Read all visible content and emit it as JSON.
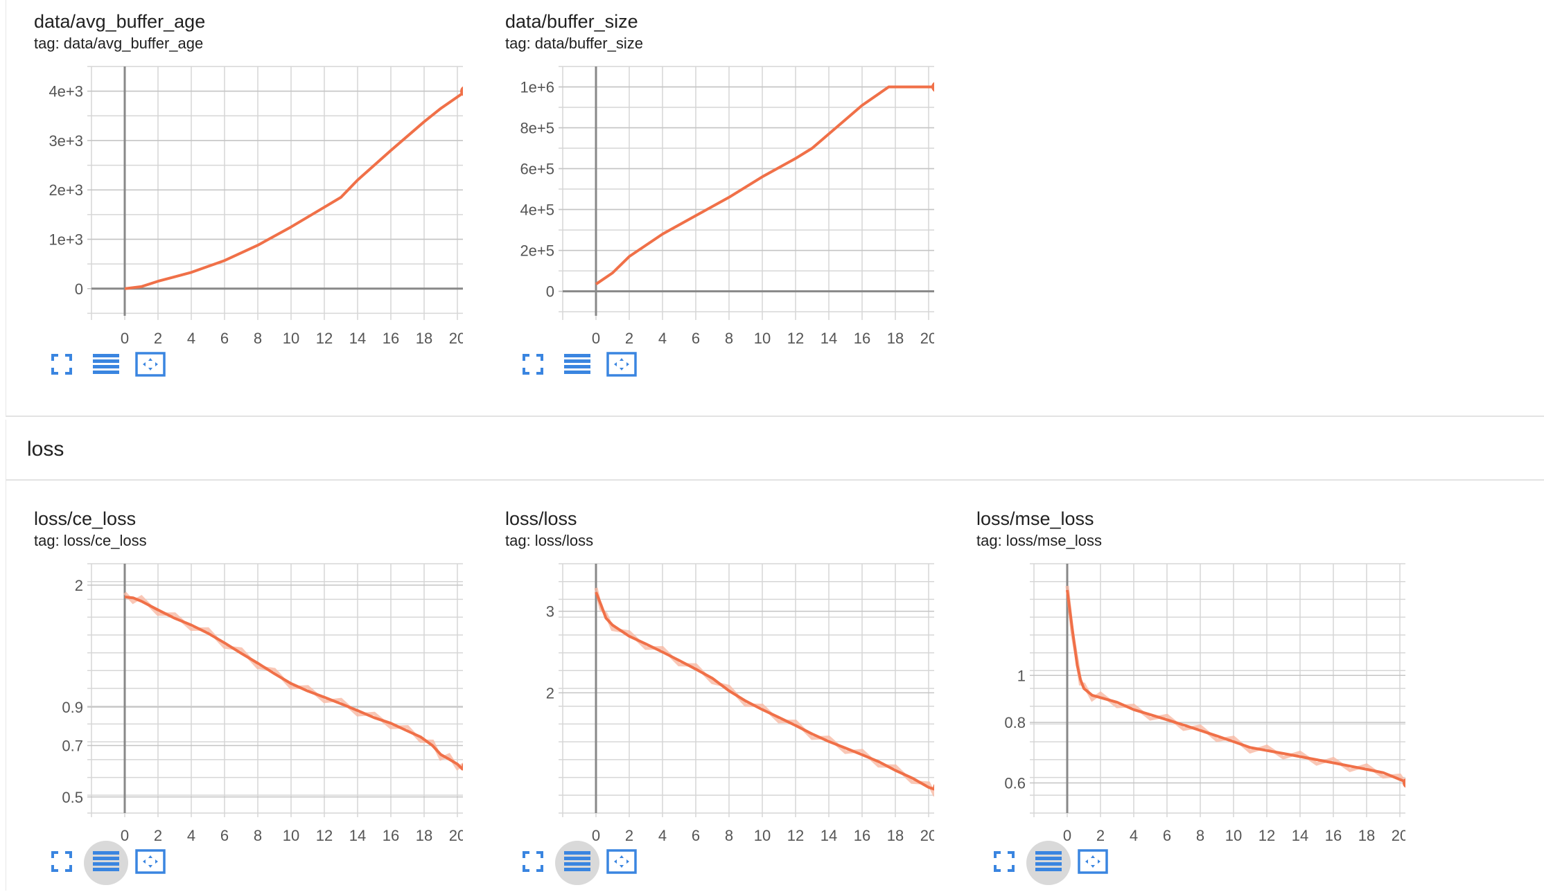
{
  "group_title": "loss",
  "colors": {
    "line": "#f07048",
    "line_faint": "#f7b9a4",
    "grid": "#d6d6d6",
    "axis": "#888888",
    "icon": "#3a85e0"
  },
  "icons": [
    "fullscreen-icon",
    "toggle-log-scale-icon",
    "fit-domain-icon"
  ],
  "cards": [
    {
      "title": "data/avg_buffer_age",
      "tag": "tag: data/avg_buffer_age"
    },
    {
      "title": "data/buffer_size",
      "tag": "tag: data/buffer_size"
    },
    {
      "title": "loss/ce_loss",
      "tag": "tag: loss/ce_loss"
    },
    {
      "title": "loss/loss",
      "tag": "tag: loss/loss"
    },
    {
      "title": "loss/mse_loss",
      "tag": "tag: loss/mse_loss"
    }
  ],
  "chart_data": [
    {
      "type": "line",
      "title": "data/avg_buffer_age",
      "x_ticks": [
        "0",
        "2",
        "4",
        "6",
        "8",
        "10",
        "12",
        "14",
        "16",
        "18",
        "20"
      ],
      "y_ticks": [
        "0",
        "1e+3",
        "2e+3",
        "3e+3",
        "4e+3"
      ],
      "y_tick_values": [
        0,
        1000,
        2000,
        3000,
        4000
      ],
      "xlim": [
        -2,
        22
      ],
      "ylim": [
        -550,
        4500
      ],
      "scale": "linear",
      "series": [
        {
          "x": [
            0,
            1,
            2,
            4,
            6,
            8,
            10,
            12,
            13,
            14,
            16,
            18,
            19,
            20.5
          ],
          "y": [
            0,
            40,
            150,
            330,
            570,
            880,
            1250,
            1650,
            1850,
            2200,
            2800,
            3380,
            3650,
            4000
          ]
        }
      ]
    },
    {
      "type": "line",
      "title": "data/buffer_size",
      "x_ticks": [
        "0",
        "2",
        "4",
        "6",
        "8",
        "10",
        "12",
        "14",
        "16",
        "18",
        "20"
      ],
      "y_ticks": [
        "0",
        "2e+5",
        "4e+5",
        "6e+5",
        "8e+5",
        "1e+6"
      ],
      "y_tick_values": [
        0,
        200000,
        400000,
        600000,
        800000,
        1000000
      ],
      "xlim": [
        -2,
        22
      ],
      "ylim": [
        -120000,
        1100000
      ],
      "scale": "linear",
      "series": [
        {
          "x": [
            0,
            1,
            2,
            4,
            6,
            8,
            10,
            12,
            13,
            14,
            16,
            17.6,
            18.5,
            20.5
          ],
          "y": [
            35000,
            90000,
            170000,
            280000,
            370000,
            460000,
            560000,
            650000,
            700000,
            770000,
            910000,
            1000000,
            1000000,
            1000000
          ]
        }
      ]
    },
    {
      "type": "line",
      "title": "loss/ce_loss",
      "x_ticks": [
        "0",
        "2",
        "4",
        "6",
        "8",
        "10",
        "12",
        "14",
        "16",
        "18",
        "20"
      ],
      "y_ticks": [
        "0.5",
        "0.7",
        "0.9",
        "2"
      ],
      "y_tick_values": [
        0.5,
        0.7,
        0.9,
        2
      ],
      "xlim": [
        -2,
        22
      ],
      "ylim": [
        0.45,
        2.3
      ],
      "scale": "log",
      "series": [
        {
          "x": [
            0,
            0.5,
            1,
            2,
            3,
            4,
            5,
            6,
            7,
            8,
            9,
            10,
            11,
            12,
            13,
            14,
            15,
            16,
            17,
            17.8,
            18.5,
            19,
            19.5,
            20,
            20.3,
            20.6
          ],
          "y": [
            1.85,
            1.84,
            1.8,
            1.7,
            1.61,
            1.54,
            1.46,
            1.37,
            1.28,
            1.2,
            1.12,
            1.05,
            1.0,
            0.96,
            0.92,
            0.88,
            0.84,
            0.81,
            0.77,
            0.74,
            0.7,
            0.66,
            0.64,
            0.62,
            0.6,
            0.61
          ]
        }
      ]
    },
    {
      "type": "line",
      "title": "loss/loss",
      "x_ticks": [
        "0",
        "2",
        "4",
        "6",
        "8",
        "10",
        "12",
        "14",
        "16",
        "18",
        "20"
      ],
      "y_ticks": [
        "2",
        "3"
      ],
      "y_tick_values": [
        2,
        3
      ],
      "xlim": [
        -2,
        22
      ],
      "ylim": [
        1.1,
        3.8
      ],
      "scale": "log",
      "series": [
        {
          "x": [
            0,
            0.3,
            0.6,
            1,
            2,
            3,
            4,
            5,
            6,
            7,
            8,
            9,
            10,
            11,
            12,
            13,
            14,
            15,
            16,
            17,
            18,
            19,
            20,
            20.3,
            20.6
          ],
          "y": [
            3.3,
            3.1,
            2.9,
            2.8,
            2.65,
            2.55,
            2.45,
            2.35,
            2.25,
            2.15,
            2.02,
            1.92,
            1.84,
            1.77,
            1.7,
            1.63,
            1.57,
            1.52,
            1.47,
            1.42,
            1.36,
            1.31,
            1.25,
            1.24,
            1.25
          ]
        }
      ]
    },
    {
      "type": "line",
      "title": "loss/mse_loss",
      "x_ticks": [
        "0",
        "2",
        "4",
        "6",
        "8",
        "10",
        "12",
        "14",
        "16",
        "18",
        "20"
      ],
      "y_ticks": [
        "0.6",
        "0.8",
        "1"
      ],
      "y_tick_values": [
        0.6,
        0.8,
        1
      ],
      "xlim": [
        -2,
        22
      ],
      "ylim": [
        0.52,
        1.7
      ],
      "scale": "log",
      "series": [
        {
          "x": [
            0,
            0.3,
            0.6,
            0.8,
            1,
            1.5,
            2,
            3,
            4,
            5,
            6,
            7,
            8,
            9,
            10,
            11,
            12,
            13,
            14,
            15,
            16,
            17,
            18,
            19,
            20,
            20.5
          ],
          "y": [
            1.5,
            1.25,
            1.05,
            0.98,
            0.94,
            0.91,
            0.9,
            0.88,
            0.85,
            0.83,
            0.81,
            0.79,
            0.77,
            0.75,
            0.73,
            0.71,
            0.7,
            0.69,
            0.68,
            0.67,
            0.66,
            0.65,
            0.64,
            0.63,
            0.61,
            0.6
          ]
        }
      ]
    }
  ]
}
